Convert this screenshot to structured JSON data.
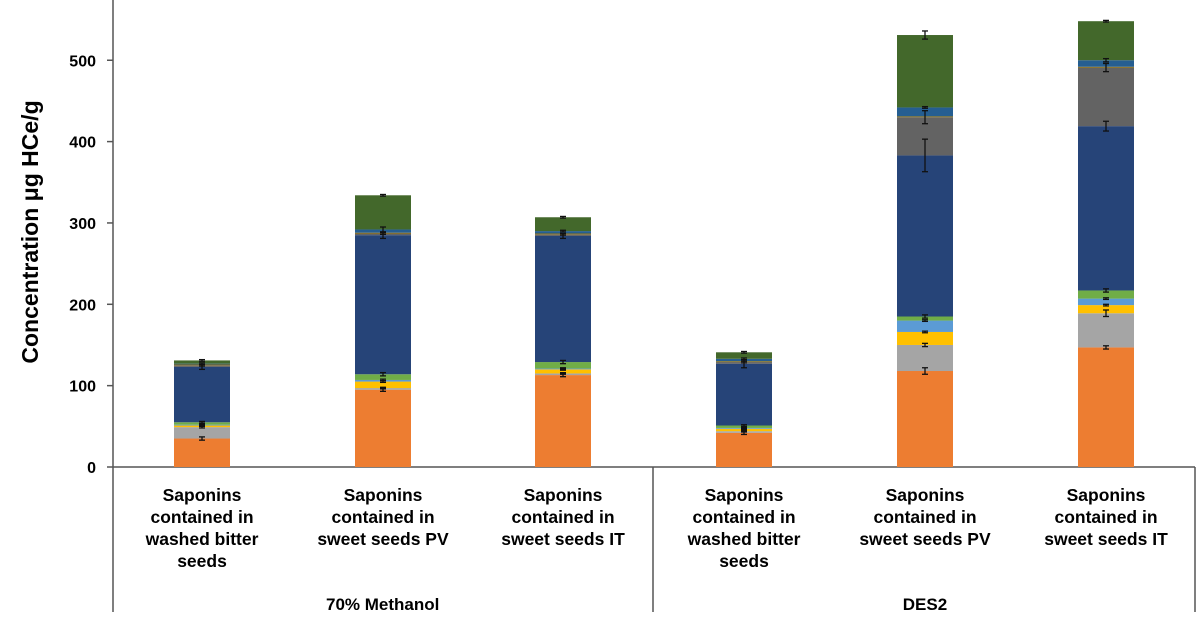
{
  "chart_data": {
    "type": "bar",
    "stacked": true,
    "title": "",
    "ylabel": "Concentration μg HCe/g",
    "ylim": [
      0,
      550
    ],
    "yticks": [
      0,
      100,
      200,
      300,
      400,
      500
    ],
    "grid": false,
    "legend": "none",
    "groups": [
      {
        "label": "70% Methanol",
        "categories": [
          0,
          1,
          2
        ]
      },
      {
        "label": "DES2",
        "categories": [
          3,
          4,
          5
        ]
      }
    ],
    "categories": [
      [
        "Saponins",
        "contained in",
        "washed bitter",
        "seeds"
      ],
      [
        "Saponins",
        "contained in",
        "sweet seeds PV"
      ],
      [
        "Saponins",
        "contained in",
        "sweet seeds IT"
      ],
      [
        "Saponins",
        "contained in",
        "washed bitter",
        "seeds"
      ],
      [
        "Saponins",
        "contained in",
        "sweet seeds PV"
      ],
      [
        "Saponins",
        "contained in",
        "sweet seeds IT"
      ]
    ],
    "series": [
      {
        "color": "#ED7D31",
        "values": [
          35,
          95,
          113,
          42,
          118,
          147
        ],
        "errors": [
          2,
          2,
          2,
          2,
          4,
          2
        ]
      },
      {
        "color": "#A5A5A5",
        "values": [
          14,
          2,
          2,
          2,
          32,
          42
        ],
        "errors": [
          1,
          1,
          1,
          1,
          2,
          4
        ]
      },
      {
        "color": "#FFC000",
        "values": [
          2,
          8,
          5,
          3,
          16,
          10
        ],
        "errors": [
          1,
          1,
          1,
          1,
          1,
          1
        ]
      },
      {
        "color": "#5B9BD5",
        "values": [
          1,
          2,
          1,
          1,
          14,
          8
        ],
        "errors": [
          1,
          1,
          1,
          1,
          1,
          1
        ]
      },
      {
        "color": "#70AD47",
        "values": [
          3,
          7,
          8,
          3,
          5,
          10
        ],
        "errors": [
          1,
          2,
          2,
          1,
          2,
          2
        ]
      },
      {
        "color": "#264478",
        "values": [
          68,
          171,
          155,
          76,
          198,
          202
        ],
        "errors": [
          3,
          4,
          3,
          5,
          20,
          6
        ]
      },
      {
        "color": "#636363",
        "values": [
          2,
          2,
          2,
          2,
          47,
          72
        ],
        "errors": [
          1,
          1,
          1,
          1,
          8,
          5
        ]
      },
      {
        "color": "#997300",
        "values": [
          1,
          1,
          1,
          1,
          1,
          1
        ],
        "errors": [
          0,
          0,
          0,
          0,
          0,
          0
        ]
      },
      {
        "color": "#255E91",
        "values": [
          1,
          4,
          3,
          3,
          11,
          8
        ],
        "errors": [
          1,
          3,
          1,
          1,
          1,
          2
        ]
      },
      {
        "color": "#43682B",
        "values": [
          4,
          42,
          17,
          8,
          89,
          48
        ],
        "errors": [
          1,
          1,
          1,
          1,
          5,
          1
        ]
      }
    ]
  }
}
